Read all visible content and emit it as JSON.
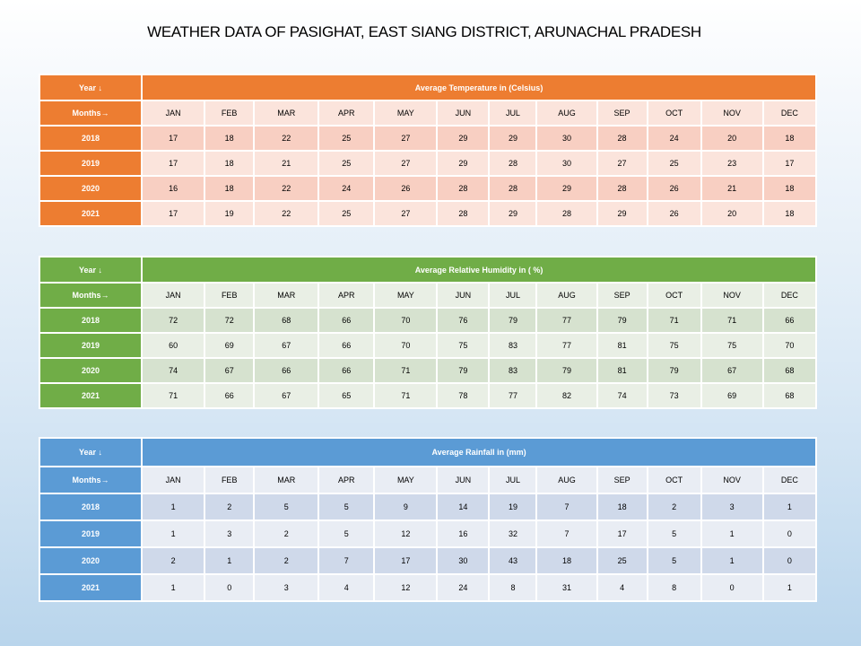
{
  "title": "WEATHER DATA OF PASIGHAT, EAST SIANG DISTRICT, ARUNACHAL PRADESH",
  "year_label": "Year ↓",
  "months_label": "Months→",
  "months": [
    "JAN",
    "FEB",
    "MAR",
    "APR",
    "MAY",
    "JUN",
    "JUL",
    "AUG",
    "SEP",
    "OCT",
    "NOV",
    "DEC"
  ],
  "colors": {
    "temperature": "#ed7d31",
    "humidity": "#70ad47",
    "rainfall": "#5b9bd5"
  },
  "tables": {
    "temperature": {
      "heading": "Average Temperature in (Celsius)",
      "rows": [
        {
          "year": "2018",
          "values": [
            "17",
            "18",
            "22",
            "25",
            "27",
            "29",
            "29",
            "30",
            "28",
            "24",
            "20",
            "18"
          ]
        },
        {
          "year": "2019",
          "values": [
            "17",
            "18",
            "21",
            "25",
            "27",
            "29",
            "28",
            "30",
            "27",
            "25",
            "23",
            "17"
          ]
        },
        {
          "year": "2020",
          "values": [
            "16",
            "18",
            "22",
            "24",
            "26",
            "28",
            "28",
            "29",
            "28",
            "26",
            "21",
            "18"
          ]
        },
        {
          "year": "2021",
          "values": [
            "17",
            "19",
            "22",
            "25",
            "27",
            "28",
            "29",
            "28",
            "29",
            "26",
            "20",
            "18"
          ]
        }
      ]
    },
    "humidity": {
      "heading": "Average Relative Humidity in ( %)",
      "rows": [
        {
          "year": "2018",
          "values": [
            "72",
            "72",
            "68",
            "66",
            "70",
            "76",
            "79",
            "77",
            "79",
            "71",
            "71",
            "66"
          ]
        },
        {
          "year": "2019",
          "values": [
            "60",
            "69",
            "67",
            "66",
            "70",
            "75",
            "83",
            "77",
            "81",
            "75",
            "75",
            "70"
          ]
        },
        {
          "year": "2020",
          "values": [
            "74",
            "67",
            "66",
            "66",
            "71",
            "79",
            "83",
            "79",
            "81",
            "79",
            "67",
            "68"
          ]
        },
        {
          "year": "2021",
          "values": [
            "71",
            "66",
            "67",
            "65",
            "71",
            "78",
            "77",
            "82",
            "74",
            "73",
            "69",
            "68"
          ]
        }
      ]
    },
    "rainfall": {
      "heading": "Average Rainfall in (mm)",
      "rows": [
        {
          "year": "2018",
          "values": [
            "1",
            "2",
            "5",
            "5",
            "9",
            "14",
            "19",
            "7",
            "18",
            "2",
            "3",
            "1"
          ]
        },
        {
          "year": "2019",
          "values": [
            "1",
            "3",
            "2",
            "5",
            "12",
            "16",
            "32",
            "7",
            "17",
            "5",
            "1",
            "0"
          ]
        },
        {
          "year": "2020",
          "values": [
            "2",
            "1",
            "2",
            "7",
            "17",
            "30",
            "43",
            "18",
            "25",
            "5",
            "1",
            "0"
          ]
        },
        {
          "year": "2021",
          "values": [
            "1",
            "0",
            "3",
            "4",
            "12",
            "24",
            "8",
            "31",
            "4",
            "8",
            "0",
            "1"
          ]
        }
      ]
    }
  }
}
